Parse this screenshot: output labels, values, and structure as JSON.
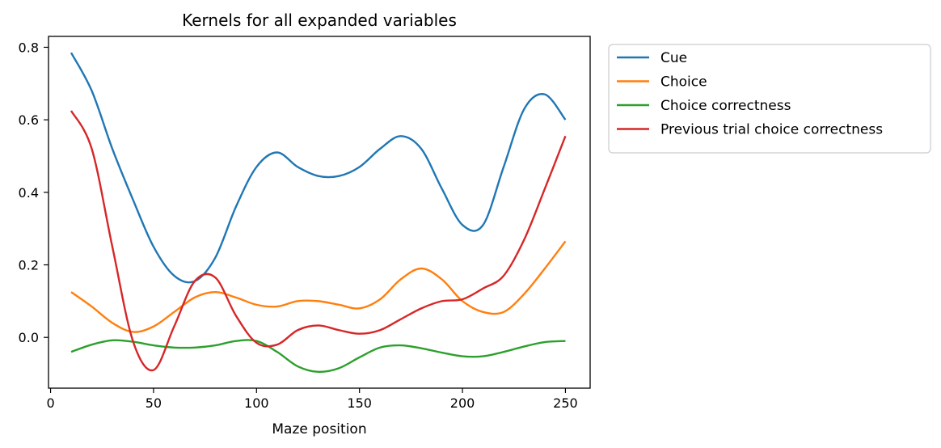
{
  "chart_data": {
    "type": "line",
    "title": "Kernels for all expanded variables",
    "xlabel": "Maze position",
    "ylabel": "",
    "xlim": [
      -1,
      262
    ],
    "ylim": [
      -0.14,
      0.83
    ],
    "xticks": [
      0,
      50,
      100,
      150,
      200,
      250
    ],
    "yticks": [
      0.0,
      0.2,
      0.4,
      0.6,
      0.8
    ],
    "xtick_labels": [
      "0",
      "50",
      "100",
      "150",
      "200",
      "250"
    ],
    "ytick_labels": [
      "0.0",
      "0.2",
      "0.4",
      "0.6",
      "0.8"
    ],
    "grid": false,
    "legend_position": "outside-top-right",
    "x": [
      10,
      20,
      30,
      40,
      50,
      60,
      70,
      80,
      90,
      100,
      110,
      120,
      130,
      140,
      150,
      160,
      170,
      180,
      190,
      200,
      210,
      220,
      230,
      240,
      250
    ],
    "series": [
      {
        "name": "Cue",
        "color": "#1f77b4",
        "values": [
          0.785,
          0.68,
          0.52,
          0.38,
          0.25,
          0.17,
          0.155,
          0.22,
          0.36,
          0.47,
          0.51,
          0.47,
          0.445,
          0.445,
          0.47,
          0.52,
          0.555,
          0.52,
          0.41,
          0.31,
          0.31,
          0.47,
          0.63,
          0.67,
          0.6
        ]
      },
      {
        "name": "Choice",
        "color": "#ff7f0e",
        "values": [
          0.125,
          0.085,
          0.04,
          0.015,
          0.03,
          0.07,
          0.11,
          0.125,
          0.11,
          0.09,
          0.085,
          0.1,
          0.1,
          0.09,
          0.08,
          0.105,
          0.16,
          0.19,
          0.16,
          0.1,
          0.07,
          0.07,
          0.12,
          0.19,
          0.265
        ]
      },
      {
        "name": "Choice correctness",
        "color": "#2ca02c",
        "values": [
          -0.04,
          -0.02,
          -0.008,
          -0.012,
          -0.022,
          -0.028,
          -0.028,
          -0.022,
          -0.01,
          -0.01,
          -0.04,
          -0.08,
          -0.095,
          -0.085,
          -0.055,
          -0.028,
          -0.022,
          -0.03,
          -0.042,
          -0.052,
          -0.052,
          -0.04,
          -0.025,
          -0.013,
          -0.01
        ]
      },
      {
        "name": "Previous trial choice correctness",
        "color": "#d62728",
        "values": [
          0.625,
          0.52,
          0.25,
          -0.01,
          -0.09,
          0.03,
          0.155,
          0.165,
          0.06,
          -0.015,
          -0.02,
          0.02,
          0.033,
          0.02,
          0.01,
          0.02,
          0.05,
          0.08,
          0.1,
          0.105,
          0.135,
          0.17,
          0.27,
          0.41,
          0.555
        ]
      }
    ]
  }
}
